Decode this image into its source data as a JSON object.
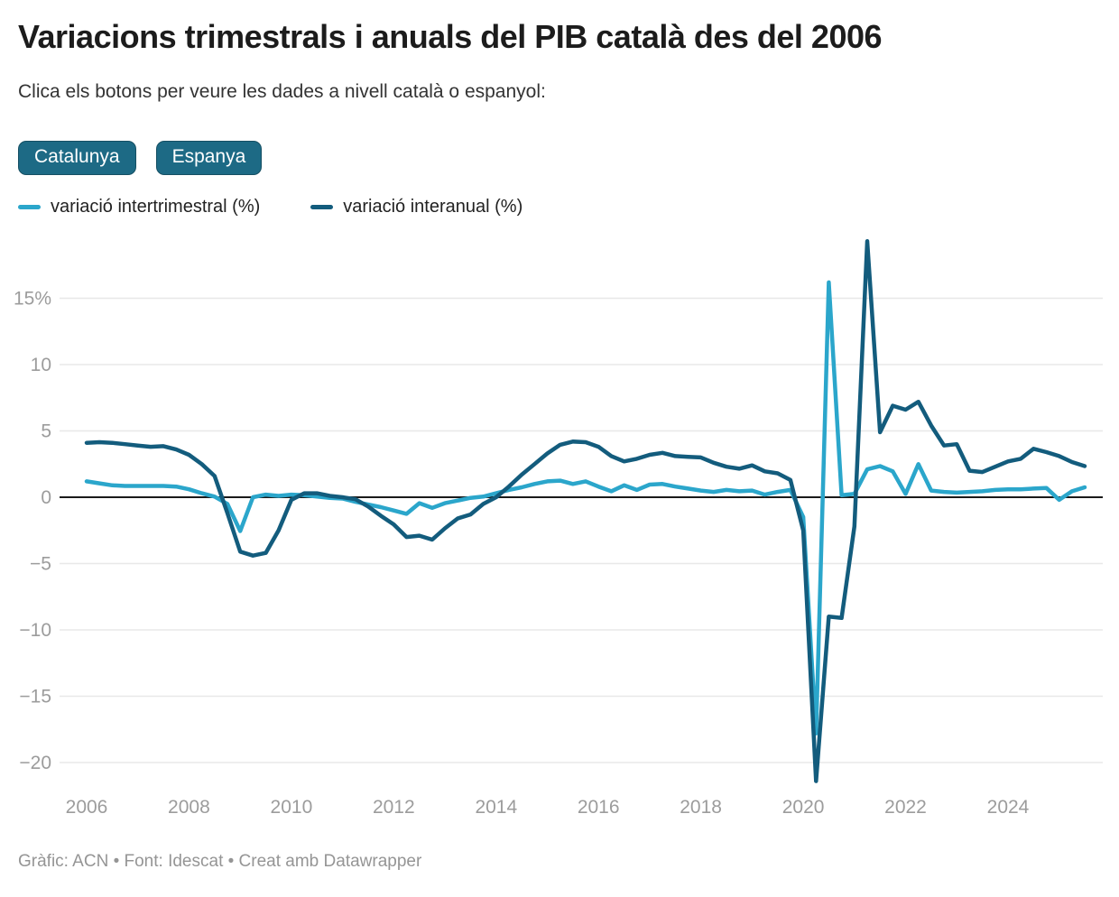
{
  "header": {
    "title": "Variacions trimestrals i anuals del PIB català des del 2006",
    "subtitle": "Clica els botons per veure les dades a nivell català o espanyol:"
  },
  "controls": {
    "buttons": [
      {
        "label": "Catalunya"
      },
      {
        "label": "Espanya"
      }
    ]
  },
  "legend": [
    {
      "label": "variació intertrimestral (%)",
      "color": "#2ba6cb"
    },
    {
      "label": "variació interanual (%)",
      "color": "#135c7d"
    }
  ],
  "footer": {
    "text": "Gràfic: ACN • Font: Idescat • Creat amb Datawrapper"
  },
  "colors": {
    "accent_button": "#1d6a85",
    "line_intertrimestral": "#2ba6cb",
    "line_interanual": "#135c7d",
    "grid": "#e8e8e8",
    "zero_line": "#1a1a1a",
    "tick_text": "#9c9c9c"
  },
  "chart_data": {
    "type": "line",
    "title": "Variacions trimestrals i anuals del PIB català des del 2006",
    "xlabel": "",
    "ylabel": "%",
    "x_start": 2006,
    "x_step_years": 0.25,
    "x_end_label": "2025-T3",
    "ylim": [
      -22,
      20
    ],
    "grid": "horizontal",
    "legend_position": "top-left",
    "x_axis": {
      "ticks": [
        2006,
        2008,
        2010,
        2012,
        2014,
        2016,
        2018,
        2020,
        2022,
        2024
      ]
    },
    "y_axis": {
      "ticks": [
        {
          "value": 15,
          "label": "15%"
        },
        {
          "value": 10,
          "label": "10"
        },
        {
          "value": 5,
          "label": "5"
        },
        {
          "value": 0,
          "label": "0"
        },
        {
          "value": -5,
          "label": "−5"
        },
        {
          "value": -10,
          "label": "−10"
        },
        {
          "value": -15,
          "label": "−15"
        },
        {
          "value": -20,
          "label": "−20"
        }
      ]
    },
    "series": [
      {
        "id": "intertrimestral",
        "name": "variació intertrimestral (%)",
        "color": "#2ba6cb",
        "values": [
          1.2,
          1.05,
          0.9,
          0.85,
          0.85,
          0.85,
          0.85,
          0.8,
          0.6,
          0.3,
          0.05,
          -0.5,
          -2.55,
          0.0,
          0.2,
          0.1,
          0.2,
          0.15,
          0.05,
          -0.05,
          -0.1,
          -0.35,
          -0.55,
          -0.75,
          -1.0,
          -1.25,
          -0.45,
          -0.8,
          -0.45,
          -0.25,
          -0.05,
          0.05,
          0.3,
          0.55,
          0.75,
          1.0,
          1.2,
          1.25,
          1.0,
          1.2,
          0.8,
          0.45,
          0.9,
          0.55,
          0.95,
          1.0,
          0.8,
          0.65,
          0.5,
          0.4,
          0.55,
          0.45,
          0.5,
          0.2,
          0.4,
          0.55,
          -1.5,
          -17.8,
          16.2,
          0.15,
          0.25,
          2.1,
          2.35,
          1.95,
          0.25,
          2.5,
          0.5,
          0.4,
          0.35,
          0.4,
          0.45,
          0.55,
          0.6,
          0.6,
          0.65,
          0.7,
          -0.2,
          0.45,
          0.75
        ]
      },
      {
        "id": "interanual",
        "name": "variació interanual (%)",
        "color": "#135c7d",
        "values": [
          4.1,
          4.15,
          4.1,
          4.0,
          3.9,
          3.8,
          3.85,
          3.6,
          3.2,
          2.5,
          1.6,
          -1.2,
          -4.1,
          -4.4,
          -4.2,
          -2.5,
          -0.2,
          0.3,
          0.3,
          0.1,
          0.0,
          -0.15,
          -0.7,
          -1.4,
          -2.05,
          -3.0,
          -2.9,
          -3.2,
          -2.35,
          -1.6,
          -1.3,
          -0.5,
          0.0,
          0.8,
          1.7,
          2.5,
          3.3,
          3.95,
          4.2,
          4.15,
          3.8,
          3.1,
          2.7,
          2.9,
          3.2,
          3.35,
          3.1,
          3.05,
          3.0,
          2.6,
          2.3,
          2.15,
          2.4,
          1.95,
          1.8,
          1.3,
          -2.5,
          -21.4,
          -9.0,
          -9.1,
          -2.2,
          19.3,
          4.9,
          6.9,
          6.6,
          7.2,
          5.4,
          3.9,
          4.0,
          2.0,
          1.9,
          2.3,
          2.7,
          2.9,
          3.65,
          3.4,
          3.1,
          2.65,
          2.35
        ]
      }
    ]
  }
}
